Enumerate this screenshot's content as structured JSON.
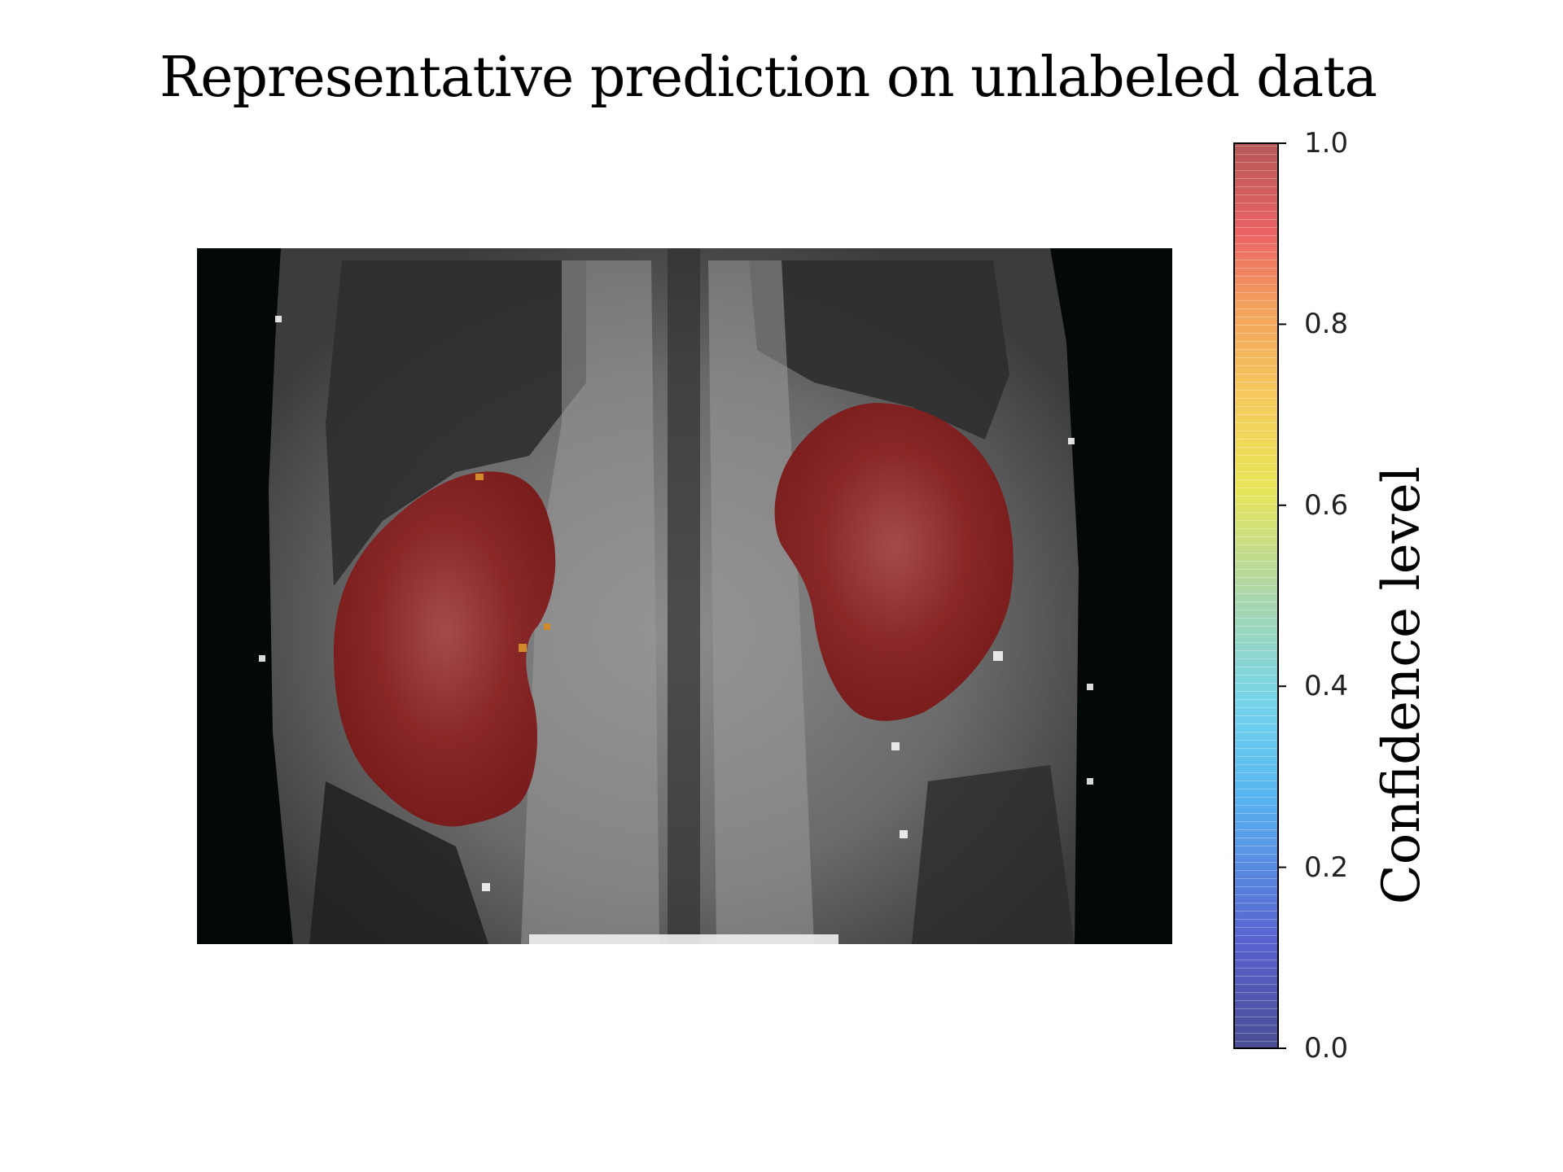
{
  "chart_data": {
    "type": "heatmap",
    "title": "Representative prediction on unlabeled data",
    "description_image": "grayscale MRI slice with red overlay segmentations",
    "colorbar": {
      "label": "Confidence level",
      "ticks": [
        "0.0",
        "0.2",
        "0.4",
        "0.6",
        "0.8",
        "1.0"
      ],
      "tick_values": [
        0.0,
        0.2,
        0.4,
        0.6,
        0.8,
        1.0
      ],
      "range": [
        0.0,
        1.0
      ],
      "colormap": "jet"
    },
    "overlays": [
      {
        "name": "left-kidney",
        "confidence": 0.98
      },
      {
        "name": "right-kidney",
        "confidence": 0.98
      }
    ]
  },
  "colors": {
    "overlay": "#8b1a1a",
    "background": "#050808"
  }
}
